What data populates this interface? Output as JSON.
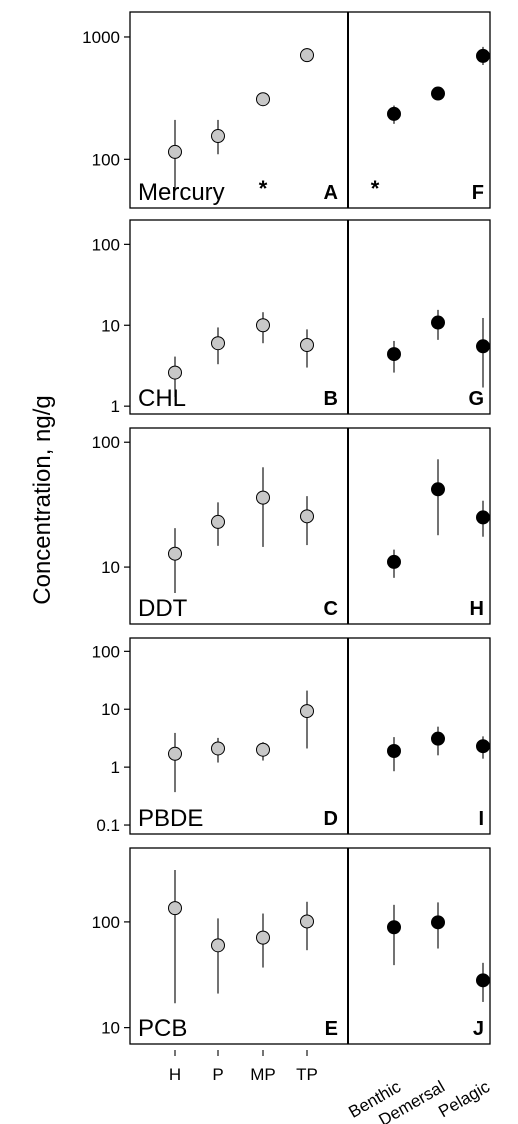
{
  "chart_data": {
    "type": "scatter",
    "ylabel": "Concentration, ng/g",
    "y_scale": "log",
    "left_categories": [
      "H",
      "P",
      "MP",
      "TP"
    ],
    "right_categories": [
      "Benthic",
      "Demersal",
      "Pelagic"
    ],
    "left_marker_color": "#c8c8c8",
    "right_marker_color": "#000000",
    "panels": [
      {
        "name": "Mercury",
        "ylim": [
          40,
          1600
        ],
        "yticks": [
          100,
          1000
        ],
        "ytick_labels": [
          "100",
          "1000"
        ],
        "left_letter": "A",
        "right_letter": "F",
        "left_annotations": [
          {
            "category": "MP",
            "text": "*"
          }
        ],
        "right_annotations": [
          {
            "text": "*"
          }
        ],
        "left": [
          {
            "category": "H",
            "value": 115,
            "low": 55,
            "high": 210
          },
          {
            "category": "P",
            "value": 155,
            "low": 110,
            "high": 210
          },
          {
            "category": "MP",
            "value": 310,
            "low": 300,
            "high": 320
          },
          {
            "category": "TP",
            "value": 710,
            "low": 630,
            "high": 810
          }
        ],
        "right": [
          {
            "category": "Benthic",
            "value": 235,
            "low": 195,
            "high": 275
          },
          {
            "category": "Demersal",
            "value": 345,
            "low": 325,
            "high": 365
          },
          {
            "category": "Pelagic",
            "value": 700,
            "low": 590,
            "high": 830
          }
        ]
      },
      {
        "name": "CHL",
        "ylim": [
          0.8,
          200
        ],
        "yticks": [
          1,
          10,
          100
        ],
        "ytick_labels": [
          "1",
          "10",
          "100"
        ],
        "left_letter": "B",
        "right_letter": "G",
        "left": [
          {
            "category": "H",
            "value": 2.6,
            "low": 1.3,
            "high": 4.1
          },
          {
            "category": "P",
            "value": 6.0,
            "low": 3.3,
            "high": 9.4
          },
          {
            "category": "MP",
            "value": 10,
            "low": 6.0,
            "high": 14.5
          },
          {
            "category": "TP",
            "value": 5.7,
            "low": 3.0,
            "high": 8.9
          }
        ],
        "right": [
          {
            "category": "Benthic",
            "value": 4.4,
            "low": 2.6,
            "high": 6.4
          },
          {
            "category": "Demersal",
            "value": 10.8,
            "low": 6.6,
            "high": 15.5
          },
          {
            "category": "Pelagic",
            "value": 5.5,
            "low": 1.7,
            "high": 12.3
          }
        ]
      },
      {
        "name": "DDT",
        "ylim": [
          3.5,
          130
        ],
        "yticks": [
          10,
          100
        ],
        "ytick_labels": [
          "10",
          "100"
        ],
        "left_letter": "C",
        "right_letter": "H",
        "left": [
          {
            "category": "H",
            "value": 12.8,
            "low": 6.2,
            "high": 20.5
          },
          {
            "category": "P",
            "value": 23,
            "low": 14.8,
            "high": 33
          },
          {
            "category": "MP",
            "value": 36,
            "low": 14.5,
            "high": 63
          },
          {
            "category": "TP",
            "value": 25.5,
            "low": 15,
            "high": 37
          }
        ],
        "right": [
          {
            "category": "Benthic",
            "value": 11,
            "low": 8.2,
            "high": 13.8
          },
          {
            "category": "Demersal",
            "value": 42,
            "low": 18,
            "high": 73
          },
          {
            "category": "Pelagic",
            "value": 25,
            "low": 17.5,
            "high": 34
          }
        ]
      },
      {
        "name": "PBDE",
        "ylim": [
          0.07,
          170
        ],
        "yticks": [
          0.1,
          1,
          10,
          100
        ],
        "ytick_labels": [
          "0.1",
          "1",
          "10",
          "100"
        ],
        "left_letter": "D",
        "right_letter": "I",
        "left": [
          {
            "category": "H",
            "value": 1.7,
            "low": 0.37,
            "high": 3.9
          },
          {
            "category": "P",
            "value": 2.1,
            "low": 1.2,
            "high": 3.2
          },
          {
            "category": "MP",
            "value": 2.0,
            "low": 1.3,
            "high": 2.7
          },
          {
            "category": "TP",
            "value": 9.3,
            "low": 2.1,
            "high": 21
          }
        ],
        "right": [
          {
            "category": "Benthic",
            "value": 1.9,
            "low": 0.85,
            "high": 3.3
          },
          {
            "category": "Demersal",
            "value": 3.1,
            "low": 1.6,
            "high": 5.0
          },
          {
            "category": "Pelagic",
            "value": 2.3,
            "low": 1.4,
            "high": 3.4
          }
        ]
      },
      {
        "name": "PCB",
        "ylim": [
          7,
          500
        ],
        "yticks": [
          10,
          100
        ],
        "ytick_labels": [
          "10",
          "100"
        ],
        "left_letter": "E",
        "right_letter": "J",
        "left": [
          {
            "category": "H",
            "value": 135,
            "low": 17,
            "high": 310
          },
          {
            "category": "P",
            "value": 60,
            "low": 21,
            "high": 108
          },
          {
            "category": "MP",
            "value": 71,
            "low": 37,
            "high": 120
          },
          {
            "category": "TP",
            "value": 101,
            "low": 54,
            "high": 155
          }
        ],
        "right": [
          {
            "category": "Benthic",
            "value": 89,
            "low": 39,
            "high": 145
          },
          {
            "category": "Demersal",
            "value": 99,
            "low": 56,
            "high": 153
          },
          {
            "category": "Pelagic",
            "value": 28,
            "low": 17.5,
            "high": 41
          }
        ]
      }
    ]
  }
}
